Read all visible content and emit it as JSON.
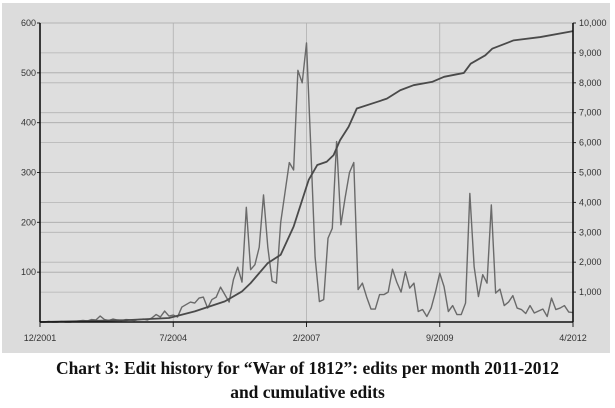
{
  "chart_data": {
    "type": "line",
    "title": "Chart 3: Edit history for “War of 1812”: edits per month 2011-2012",
    "title_line2": "and cumulative edits",
    "xlabel": "",
    "x_tick_labels": [
      "12/2001",
      "7/2004",
      "2/2007",
      "9/2009",
      "4/2012"
    ],
    "x_tick_months": [
      0,
      31,
      62,
      93,
      124
    ],
    "y_left": {
      "label": "",
      "ylim": [
        0,
        600
      ],
      "ticks": [
        100,
        200,
        300,
        400,
        500,
        600
      ],
      "tick_labels": [
        "100",
        "200",
        "300",
        "400",
        "500",
        "600"
      ]
    },
    "y_right": {
      "label": "",
      "ylim": [
        0,
        10000
      ],
      "ticks": [
        1000,
        2000,
        3000,
        4000,
        5000,
        6000,
        7000,
        8000,
        9000,
        10000
      ],
      "tick_labels": [
        "1,000",
        "2,000",
        "3,000",
        "4,000",
        "5,000",
        "6,000",
        "7,000",
        "8,000",
        "9,000",
        "10,000"
      ]
    },
    "grid": true,
    "series": [
      {
        "name": "Edits per month",
        "axis": "left",
        "color": "#6a6a6a",
        "values": [
          0,
          0,
          1,
          0,
          0,
          1,
          0,
          0,
          1,
          2,
          3,
          2,
          5,
          4,
          12,
          5,
          3,
          6,
          4,
          3,
          5,
          4,
          3,
          5,
          6,
          4,
          8,
          15,
          10,
          22,
          12,
          14,
          10,
          30,
          35,
          40,
          38,
          48,
          50,
          28,
          45,
          50,
          70,
          55,
          40,
          85,
          110,
          80,
          230,
          105,
          115,
          150,
          255,
          150,
          82,
          78,
          200,
          260,
          320,
          305,
          505,
          480,
          560,
          350,
          130,
          41,
          45,
          168,
          188,
          362,
          195,
          250,
          300,
          320,
          65,
          78,
          50,
          26,
          26,
          55,
          55,
          60,
          106,
          80,
          60,
          101,
          68,
          78,
          21,
          25,
          11,
          28,
          60,
          98,
          71,
          21,
          33,
          15,
          15,
          38,
          258,
          111,
          51,
          95,
          78,
          235,
          58,
          66,
          33,
          40,
          53,
          28,
          25,
          17,
          33,
          18,
          22,
          26,
          11,
          48,
          25,
          28,
          33,
          20,
          19
        ]
      },
      {
        "name": "Cumulative edits",
        "axis": "right",
        "color": "#4a4a4a",
        "points": [
          [
            0,
            0
          ],
          [
            20,
            60
          ],
          [
            30,
            133
          ],
          [
            36,
            356
          ],
          [
            43,
            690
          ],
          [
            47,
            1023
          ],
          [
            49,
            1300
          ],
          [
            53,
            1970
          ],
          [
            56,
            2250
          ],
          [
            59,
            3190
          ],
          [
            62.5,
            4750
          ],
          [
            64.5,
            5250
          ],
          [
            66.7,
            5360
          ],
          [
            68.3,
            5580
          ],
          [
            69.8,
            6080
          ],
          [
            71.8,
            6530
          ],
          [
            73.7,
            7140
          ],
          [
            78.4,
            7360
          ],
          [
            80.7,
            7470
          ],
          [
            83.8,
            7750
          ],
          [
            86.9,
            7920
          ],
          [
            91.2,
            8030
          ],
          [
            94,
            8200
          ],
          [
            98.6,
            8330
          ],
          [
            100.2,
            8640
          ],
          [
            103.6,
            8920
          ],
          [
            105.2,
            9140
          ],
          [
            110.2,
            9420
          ],
          [
            116.4,
            9530
          ],
          [
            124,
            9730
          ]
        ]
      }
    ]
  }
}
